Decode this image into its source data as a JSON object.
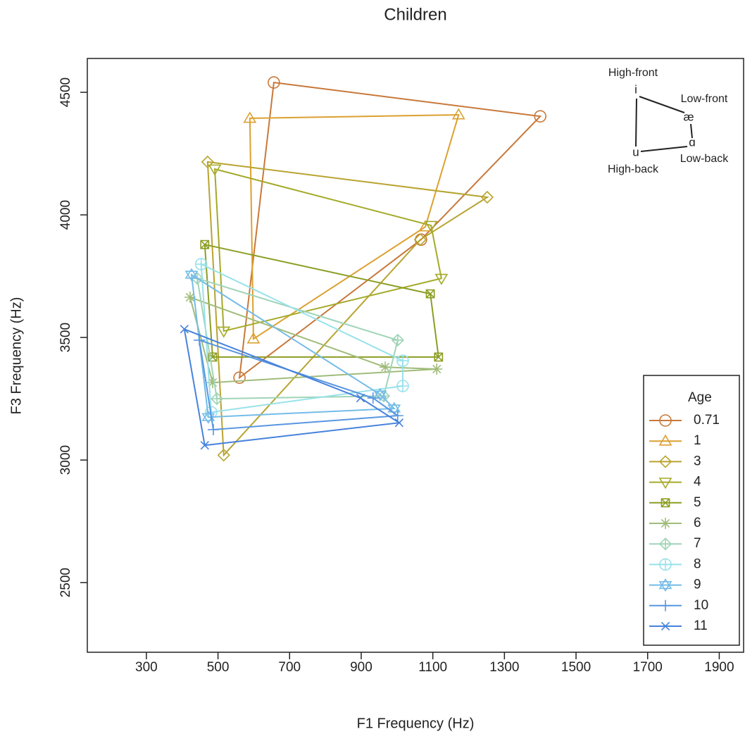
{
  "chart_data": {
    "type": "line",
    "title": "Children",
    "x_label": "F1 Frequency (Hz)",
    "y_label": "F3 Frequency (Hz)",
    "xlim": [
      135,
      1968
    ],
    "ylim": [
      2216,
      4638
    ],
    "xticks": [
      300,
      500,
      700,
      900,
      1100,
      1300,
      1500,
      1700,
      1900
    ],
    "yticks": [
      2500,
      3000,
      3500,
      4000,
      4500
    ],
    "legend_title": "Age",
    "legend_position": "lower right",
    "inset_vowels": [
      "i",
      "æ",
      "ɑ",
      "u"
    ],
    "inset_labels": [
      "High-front",
      "Low-front",
      "Low-back",
      "High-back"
    ],
    "series": [
      {
        "name": "0.71",
        "color": "#c8783a",
        "marker": "circle",
        "x": [
          656,
          1400,
          1067,
          560
        ],
        "values": [
          4540,
          4402,
          3899,
          3336
        ]
      },
      {
        "name": "1",
        "color": "#dca030",
        "marker": "triangle",
        "x": [
          589,
          1172,
          1079,
          599
        ],
        "values": [
          4394,
          4408,
          3951,
          3494
        ]
      },
      {
        "name": "3",
        "color": "#b8a430",
        "marker": "diamond",
        "x": [
          471,
          1252,
          1065,
          516
        ],
        "values": [
          4216,
          4072,
          3899,
          3020
        ]
      },
      {
        "name": "4",
        "color": "#a4aa28",
        "marker": "triangle-down",
        "x": [
          491,
          1095,
          1124,
          516
        ],
        "values": [
          4187,
          3957,
          3741,
          3526
        ]
      },
      {
        "name": "5",
        "color": "#8c9e24",
        "marker": "square-x",
        "x": [
          463,
          1093,
          1116,
          485
        ],
        "values": [
          3879,
          3678,
          3420,
          3420
        ]
      },
      {
        "name": "6",
        "color": "#a0bc7a",
        "marker": "asterisk",
        "x": [
          422,
          967,
          1111,
          485
        ],
        "values": [
          3664,
          3379,
          3371,
          3316
        ]
      },
      {
        "name": "7",
        "color": "#a0d4b8",
        "marker": "diamond-plus",
        "x": [
          442,
          1002,
          963,
          497
        ],
        "values": [
          3741,
          3489,
          3261,
          3250
        ]
      },
      {
        "name": "8",
        "color": "#98e2ea",
        "marker": "circle-plus",
        "x": [
          453,
          1016,
          1016,
          481
        ],
        "values": [
          3799,
          3405,
          3302,
          3195
        ]
      },
      {
        "name": "9",
        "color": "#74bce8",
        "marker": "star",
        "x": [
          426,
          953,
          992,
          473
        ],
        "values": [
          3756,
          3267,
          3210,
          3175
        ]
      },
      {
        "name": "10",
        "color": "#5896e0",
        "marker": "plus",
        "x": [
          448,
          933,
          1002,
          487
        ],
        "values": [
          3489,
          3253,
          3181,
          3124
        ]
      },
      {
        "name": "11",
        "color": "#4682dc",
        "marker": "x",
        "x": [
          406,
          898,
          1006,
          463
        ],
        "values": [
          3534,
          3253,
          3152,
          3060
        ]
      }
    ]
  }
}
